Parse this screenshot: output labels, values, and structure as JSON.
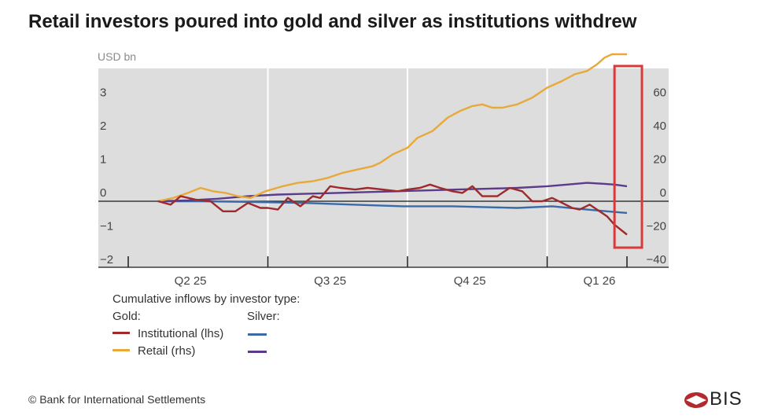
{
  "title": "Retail investors poured into gold and silver as institutions withdrew",
  "footer": "© Bank for International Settlements",
  "logo_text": "BIS",
  "colors": {
    "plot_bg": "#dddddd",
    "gold_institutional": "#9e2a2b",
    "gold_retail": "#e8a93b",
    "silver_institutional": "#3a6aa8",
    "silver_retail": "#5b3b8a",
    "highlight": "#d83a3a",
    "logo": "#b22a2e"
  },
  "legend": {
    "heading": "Cumulative inflows by investor type:",
    "gold_label": "Gold:",
    "silver_label": "Silver:",
    "institutional": "Institutional (lhs)",
    "retail": "Retail (rhs)"
  },
  "chart_data": {
    "type": "line",
    "title": "Retail investors poured into gold and silver as institutions withdrew",
    "ylabel": "USD bn",
    "ylim_left": [
      -2,
      4
    ],
    "ylim_right": [
      -40,
      80
    ],
    "yticks_left": [
      -2,
      -1,
      0,
      1,
      2,
      3
    ],
    "yticks_left_labels": [
      "−2",
      "−1",
      "0",
      "1",
      "2",
      "3"
    ],
    "yticks_right": [
      -40,
      -20,
      0,
      20,
      40,
      60
    ],
    "yticks_right_labels": [
      "−40",
      "−20",
      "0",
      "20",
      "40",
      "60"
    ],
    "x_range": [
      0,
      1
    ],
    "x_quarter_boundaries": [
      0.0,
      0.28,
      0.56,
      0.84
    ],
    "x_tick_labels": [
      "Q2 25",
      "Q3 25",
      "Q4 25",
      "Q1 26"
    ],
    "x_tick_label_positions": [
      0.15,
      0.43,
      0.71,
      0.97
    ],
    "highlight_range": [
      0.975,
      1.03
    ],
    "series": [
      {
        "name": "Gold Institutional",
        "axis": "lhs",
        "key": "gold_institutional",
        "x": [
          0.06,
          0.085,
          0.105,
          0.135,
          0.165,
          0.19,
          0.215,
          0.24,
          0.265,
          0.28,
          0.3,
          0.32,
          0.345,
          0.37,
          0.385,
          0.405,
          0.425,
          0.455,
          0.48,
          0.51,
          0.54,
          0.56,
          0.585,
          0.605,
          0.625,
          0.65,
          0.67,
          0.69,
          0.71,
          0.74,
          0.765,
          0.79,
          0.81,
          0.83,
          0.85,
          0.87,
          0.89,
          0.905,
          0.925,
          0.945,
          0.96,
          0.975,
          1.0
        ],
        "y": [
          0.0,
          -0.1,
          0.15,
          0.05,
          0.0,
          -0.3,
          -0.3,
          -0.05,
          -0.2,
          -0.2,
          -0.25,
          0.1,
          -0.15,
          0.15,
          0.1,
          0.45,
          0.4,
          0.35,
          0.4,
          0.35,
          0.3,
          0.35,
          0.4,
          0.5,
          0.4,
          0.3,
          0.25,
          0.45,
          0.15,
          0.15,
          0.4,
          0.3,
          0.0,
          0.0,
          0.1,
          -0.05,
          -0.2,
          -0.25,
          -0.1,
          -0.3,
          -0.45,
          -0.7,
          -1.0
        ]
      },
      {
        "name": "Gold Retail",
        "axis": "rhs",
        "key": "gold_retail",
        "x": [
          0.06,
          0.09,
          0.12,
          0.145,
          0.17,
          0.195,
          0.22,
          0.245,
          0.275,
          0.31,
          0.34,
          0.37,
          0.4,
          0.43,
          0.46,
          0.49,
          0.505,
          0.53,
          0.56,
          0.58,
          0.61,
          0.64,
          0.665,
          0.69,
          0.71,
          0.73,
          0.75,
          0.78,
          0.81,
          0.84,
          0.87,
          0.895,
          0.92,
          0.94,
          0.955,
          0.97,
          1.0
        ],
        "y": [
          0,
          2,
          5,
          8,
          6,
          5,
          3,
          2,
          6,
          9,
          11,
          12,
          14,
          17,
          19,
          21,
          23,
          28,
          32,
          38,
          42,
          50,
          54,
          57,
          58,
          56,
          56,
          58,
          62,
          68,
          72,
          76,
          78,
          82,
          86,
          88,
          88
        ]
      },
      {
        "name": "Silver Institutional",
        "axis": "lhs",
        "key": "silver_institutional",
        "x": [
          0.06,
          0.15,
          0.25,
          0.35,
          0.45,
          0.55,
          0.65,
          0.72,
          0.78,
          0.85,
          0.92,
          0.96,
          1.0
        ],
        "y": [
          0.0,
          0.0,
          -0.02,
          -0.05,
          -0.1,
          -0.15,
          -0.15,
          -0.18,
          -0.2,
          -0.15,
          -0.25,
          -0.3,
          -0.35
        ]
      },
      {
        "name": "Silver Retail",
        "axis": "rhs",
        "key": "silver_retail",
        "x": [
          0.06,
          0.12,
          0.18,
          0.24,
          0.3,
          0.36,
          0.42,
          0.48,
          0.54,
          0.6,
          0.66,
          0.72,
          0.78,
          0.84,
          0.88,
          0.92,
          0.95,
          0.975,
          1.0
        ],
        "y": [
          0,
          0.5,
          1.5,
          3,
          4,
          4.5,
          5,
          5.5,
          6,
          6.5,
          7,
          7.5,
          8,
          9,
          10,
          11,
          10.5,
          10,
          9
        ]
      }
    ]
  }
}
